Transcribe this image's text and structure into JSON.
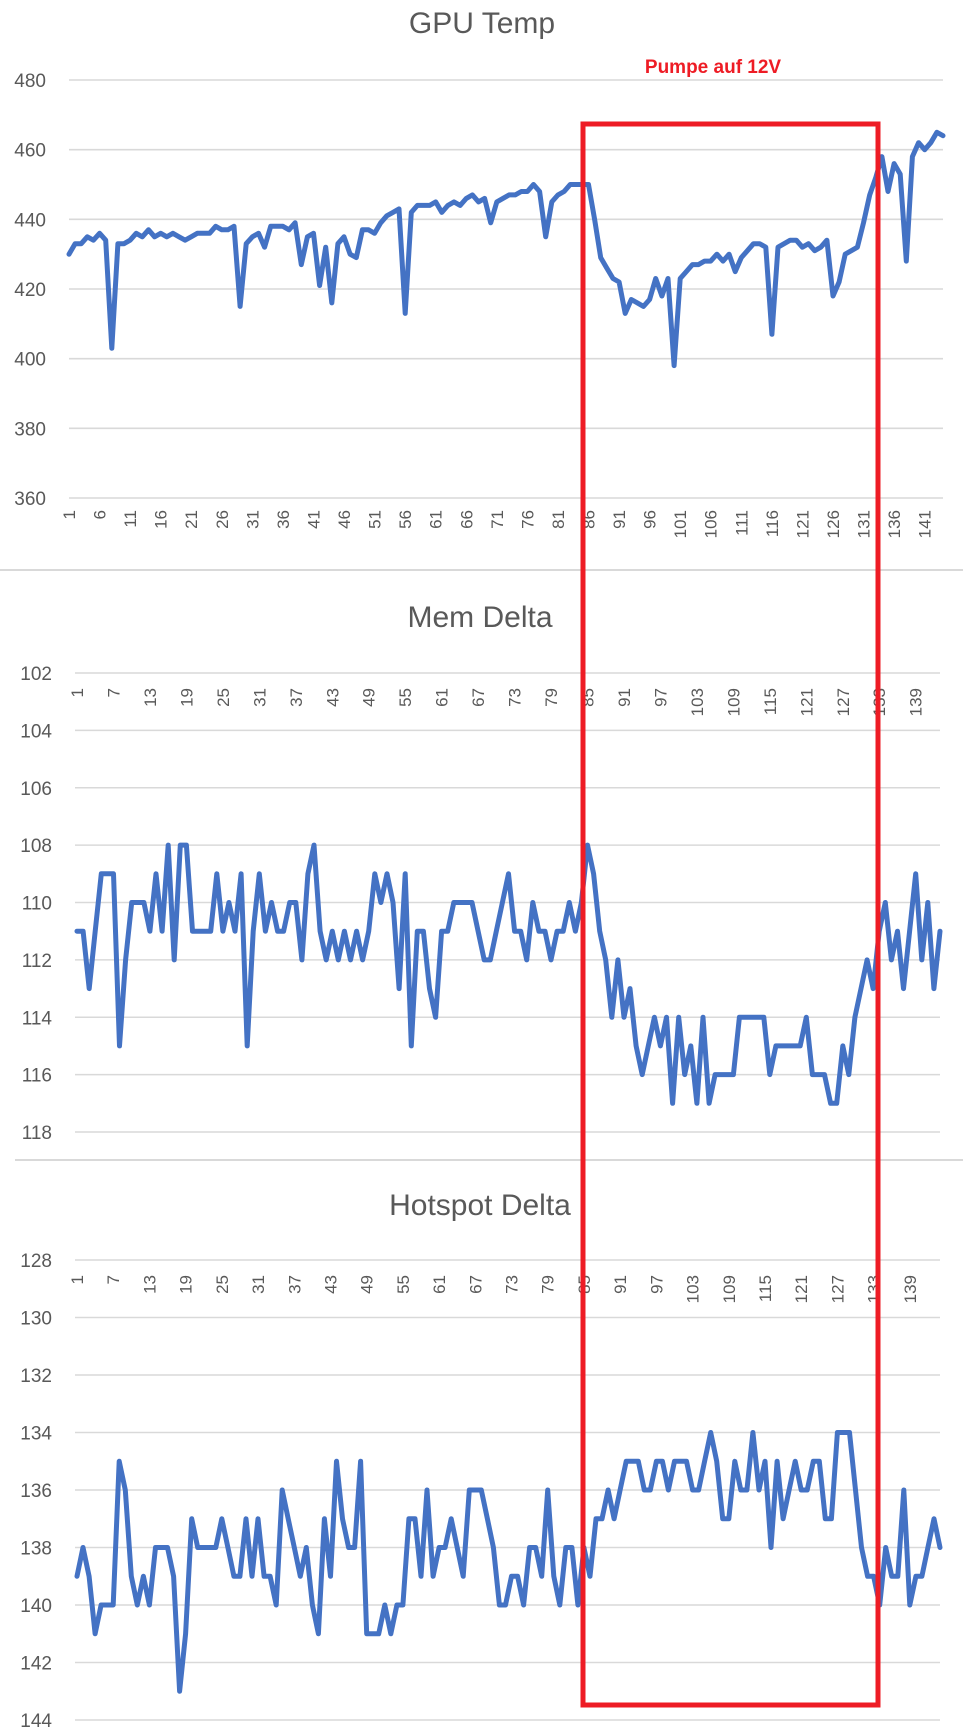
{
  "annotation": {
    "label": "Pumpe auf 12V",
    "color": "#ee1c25",
    "x_range_index": [
      85,
      133
    ]
  },
  "colors": {
    "series": "#4472c4",
    "grid": "#d9d9d9",
    "text": "#595959",
    "annotation": "#ee1c25"
  },
  "chart_data": [
    {
      "type": "line",
      "title": "GPU Temp",
      "xlabel": "",
      "ylabel": "",
      "ylim": [
        360,
        480
      ],
      "y_ticks": [
        480,
        460,
        440,
        420,
        400,
        380,
        360
      ],
      "x_ticks": [
        1,
        6,
        11,
        16,
        21,
        26,
        31,
        36,
        41,
        46,
        51,
        56,
        61,
        66,
        71,
        76,
        81,
        86,
        91,
        96,
        101,
        106,
        111,
        116,
        121,
        126,
        131,
        136,
        141
      ],
      "grid": true,
      "legend": "none",
      "series": [
        {
          "name": "GPU Temp",
          "values": [
            430,
            433,
            433,
            435,
            434,
            436,
            434,
            403,
            433,
            433,
            434,
            436,
            435,
            437,
            435,
            436,
            435,
            436,
            435,
            434,
            435,
            436,
            436,
            436,
            438,
            437,
            437,
            438,
            415,
            433,
            435,
            436,
            432,
            438,
            438,
            438,
            437,
            439,
            427,
            435,
            436,
            421,
            432,
            416,
            433,
            435,
            430,
            429,
            437,
            437,
            436,
            439,
            441,
            442,
            443,
            413,
            442,
            444,
            444,
            444,
            445,
            442,
            444,
            445,
            444,
            446,
            447,
            445,
            446,
            439,
            445,
            446,
            447,
            447,
            448,
            448,
            450,
            448,
            435,
            445,
            447,
            448,
            450,
            450,
            450,
            450,
            440,
            429,
            426,
            423,
            422,
            413,
            417,
            416,
            415,
            417,
            423,
            418,
            423,
            398,
            423,
            425,
            427,
            427,
            428,
            428,
            430,
            428,
            430,
            425,
            429,
            431,
            433,
            433,
            432,
            407,
            432,
            433,
            434,
            434,
            432,
            433,
            431,
            432,
            434,
            418,
            422,
            430,
            431,
            432,
            439,
            447,
            452,
            458,
            448,
            456,
            453,
            428,
            458,
            462,
            460,
            462,
            465,
            464
          ]
        }
      ]
    },
    {
      "type": "line",
      "title": "Mem Delta",
      "xlabel": "",
      "ylabel": "",
      "ylim": [
        102,
        118
      ],
      "y_reversed": true,
      "y_ticks": [
        102,
        104,
        106,
        108,
        110,
        112,
        114,
        116,
        118
      ],
      "x_ticks": [
        1,
        7,
        13,
        19,
        25,
        31,
        37,
        43,
        49,
        55,
        61,
        67,
        73,
        79,
        85,
        91,
        97,
        103,
        109,
        115,
        121,
        127,
        133,
        139
      ],
      "grid": true,
      "legend": "none",
      "series": [
        {
          "name": "Mem Delta",
          "values": [
            111,
            111,
            113,
            111,
            109,
            109,
            109,
            115,
            112,
            110,
            110,
            110,
            111,
            109,
            111,
            108,
            112,
            108,
            108,
            111,
            111,
            111,
            111,
            109,
            111,
            110,
            111,
            109,
            115,
            111,
            109,
            111,
            110,
            111,
            111,
            110,
            110,
            112,
            109,
            108,
            111,
            112,
            111,
            112,
            111,
            112,
            111,
            112,
            111,
            109,
            110,
            109,
            110,
            113,
            109,
            115,
            111,
            111,
            113,
            114,
            111,
            111,
            110,
            110,
            110,
            110,
            111,
            112,
            112,
            111,
            110,
            109,
            111,
            111,
            112,
            110,
            111,
            111,
            112,
            111,
            111,
            110,
            111,
            110,
            108,
            109,
            111,
            112,
            114,
            112,
            114,
            113,
            115,
            116,
            115,
            114,
            115,
            114,
            117,
            114,
            116,
            115,
            117,
            114,
            117,
            116,
            116,
            116,
            116,
            114,
            114,
            114,
            114,
            114,
            116,
            115,
            115,
            115,
            115,
            115,
            114,
            116,
            116,
            116,
            117,
            117,
            115,
            116,
            114,
            113,
            112,
            113,
            111,
            110,
            112,
            111,
            113,
            111,
            109,
            112,
            110,
            113,
            111
          ]
        }
      ]
    },
    {
      "type": "line",
      "title": "Hotspot Delta",
      "xlabel": "",
      "ylabel": "",
      "ylim": [
        128,
        144
      ],
      "y_reversed": true,
      "y_ticks": [
        128,
        130,
        132,
        134,
        136,
        138,
        140,
        142,
        144
      ],
      "x_ticks": [
        1,
        7,
        13,
        19,
        25,
        31,
        37,
        43,
        49,
        55,
        61,
        67,
        73,
        79,
        85,
        91,
        97,
        103,
        109,
        115,
        121,
        127,
        133,
        139
      ],
      "grid": true,
      "legend": "none",
      "series": [
        {
          "name": "Hotspot Delta",
          "values": [
            139,
            138,
            139,
            141,
            140,
            140,
            140,
            135,
            136,
            139,
            140,
            139,
            140,
            138,
            138,
            138,
            139,
            143,
            141,
            137,
            138,
            138,
            138,
            138,
            137,
            138,
            139,
            139,
            137,
            139,
            137,
            139,
            139,
            140,
            136,
            137,
            138,
            139,
            138,
            140,
            141,
            137,
            139,
            135,
            137,
            138,
            138,
            135,
            141,
            141,
            141,
            140,
            141,
            140,
            140,
            137,
            137,
            139,
            136,
            139,
            138,
            138,
            137,
            138,
            139,
            136,
            136,
            136,
            137,
            138,
            140,
            140,
            139,
            139,
            140,
            138,
            138,
            139,
            136,
            139,
            140,
            138,
            138,
            140,
            138,
            139,
            137,
            137,
            136,
            137,
            136,
            135,
            135,
            135,
            136,
            136,
            135,
            135,
            136,
            135,
            135,
            135,
            136,
            136,
            135,
            134,
            135,
            137,
            137,
            135,
            136,
            136,
            134,
            136,
            135,
            138,
            135,
            137,
            136,
            135,
            136,
            136,
            135,
            135,
            137,
            137,
            134,
            134,
            134,
            136,
            138,
            139,
            139,
            140,
            138,
            139,
            139,
            136,
            140,
            139,
            139,
            138,
            137,
            138
          ]
        }
      ]
    }
  ]
}
